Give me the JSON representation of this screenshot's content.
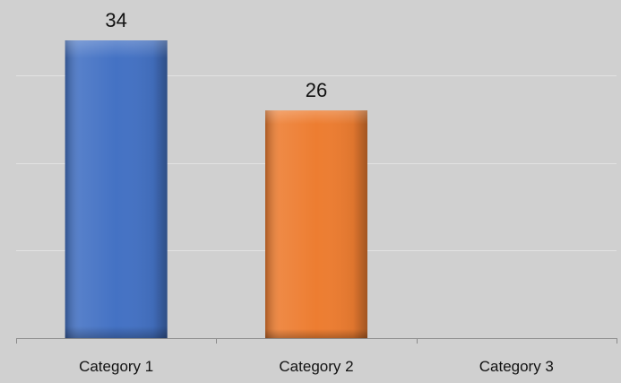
{
  "chart_data": {
    "type": "bar",
    "title": "",
    "xlabel": "",
    "ylabel": "",
    "categories": [
      "Category 1",
      "Category 2",
      "Category 3"
    ],
    "series": [
      {
        "values": [
          34,
          26,
          null
        ]
      }
    ],
    "data_labels": [
      "34",
      "26",
      ""
    ],
    "bar_colors": [
      "#4472c4",
      "#ed7d31",
      "#a5a5a5"
    ],
    "ylim": [
      0,
      40
    ],
    "y_gridlines": [
      10,
      20,
      30
    ],
    "grid": true,
    "legend": "none",
    "background": "#d0d0d0"
  }
}
